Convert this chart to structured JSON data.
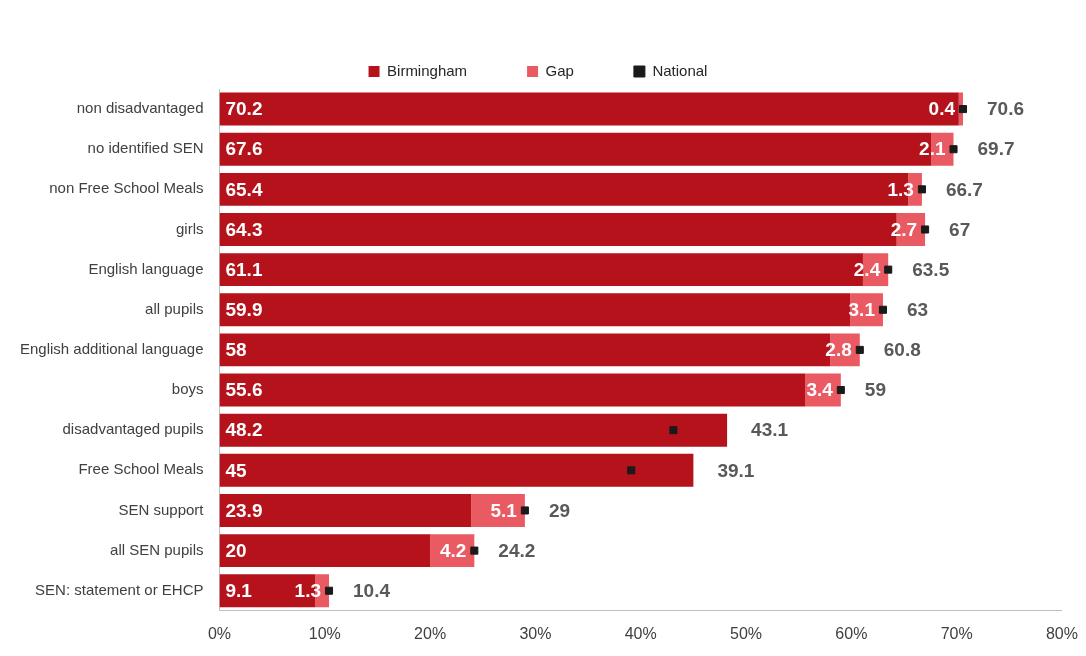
{
  "chart_data": {
    "type": "bar",
    "orientation": "horizontal",
    "stacked": true,
    "categories": [
      "non disadvantaged",
      "no identified SEN",
      "non Free School Meals",
      "girls",
      "English language",
      "all pupils",
      "English additional language",
      "boys",
      "disadvantaged pupils",
      "Free School Meals",
      "SEN support",
      "all SEN pupils",
      "SEN: statement or EHCP"
    ],
    "series": [
      {
        "name": "Birmingham",
        "color": "#b5121b",
        "values": [
          70.2,
          67.6,
          65.4,
          64.3,
          61.1,
          59.9,
          58,
          55.6,
          48.2,
          45,
          23.9,
          20,
          9.1
        ]
      },
      {
        "name": "Gap",
        "color": "#ea5a63",
        "values": [
          0.4,
          2.1,
          1.3,
          2.7,
          2.4,
          3.1,
          2.8,
          3.4,
          null,
          null,
          5.1,
          4.2,
          1.3
        ]
      },
      {
        "name": "National",
        "type": "scatter",
        "color": "#1a1a1a",
        "values": [
          70.6,
          69.7,
          66.7,
          67,
          63.5,
          63,
          60.8,
          59,
          43.1,
          39.1,
          29,
          24.2,
          10.4
        ],
        "value_labels": [
          "70.6",
          "69.7",
          "66.7",
          "67",
          "63.5",
          "63",
          "60.8",
          "59",
          null,
          null,
          "29",
          "24.2",
          "10.4"
        ]
      }
    ],
    "xlim": [
      0,
      80
    ],
    "xticks": [
      {
        "value": 0,
        "label": "0%"
      },
      {
        "value": 10,
        "label": "10%"
      },
      {
        "value": 20,
        "label": "20%"
      },
      {
        "value": 30,
        "label": "30%"
      },
      {
        "value": 40,
        "label": "40%"
      },
      {
        "value": 50,
        "label": "50%"
      },
      {
        "value": 60,
        "label": "60%"
      },
      {
        "value": 70,
        "label": "70%"
      },
      {
        "value": 80,
        "label": "80%"
      }
    ],
    "annotations": [
      "43.1",
      "39.1"
    ],
    "grid": false,
    "legend": "top",
    "data_labels": true,
    "marker": "square"
  }
}
